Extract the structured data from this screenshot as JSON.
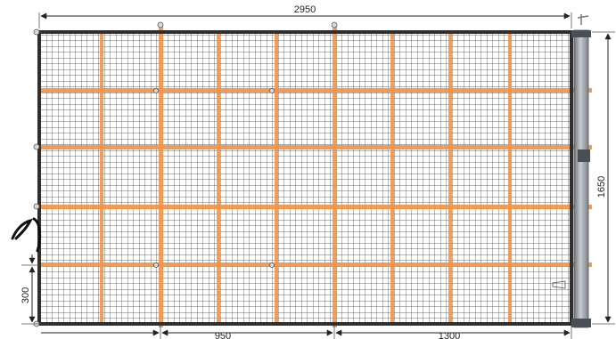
{
  "dimensions": {
    "overall_width": "2950",
    "overall_height": "1650",
    "post_spacing": "950",
    "post_spacing_right": "1300",
    "bottom_rail_height": "300"
  },
  "colors": {
    "frame": "#2f2f2f",
    "mesh": "#3a3a3a",
    "rail": "#f2944a",
    "post": "#9aa0a6",
    "dimension": "#222222"
  }
}
